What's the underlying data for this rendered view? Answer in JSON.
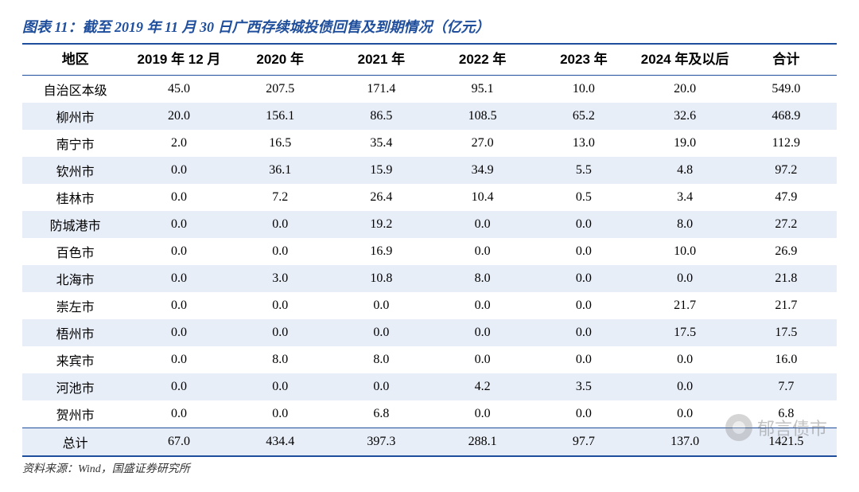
{
  "title": "图表 11：截至 2019 年 11 月 30 日广西存续城投债回售及到期情况（亿元）",
  "source": "资料来源：Wind，国盛证券研究所",
  "watermark": "郁言债市",
  "table": {
    "type": "table",
    "header_fontsize": 17,
    "cell_fontsize": 16,
    "border_color": "#1f4e9c",
    "row_stripe_color": "#e8eef8",
    "background_color": "#ffffff",
    "columns": [
      "地区",
      "2019 年 12 月",
      "2020 年",
      "2021 年",
      "2022 年",
      "2023 年",
      "2024 年及以后",
      "合计"
    ],
    "rows": [
      [
        "自治区本级",
        "45.0",
        "207.5",
        "171.4",
        "95.1",
        "10.0",
        "20.0",
        "549.0"
      ],
      [
        "柳州市",
        "20.0",
        "156.1",
        "86.5",
        "108.5",
        "65.2",
        "32.6",
        "468.9"
      ],
      [
        "南宁市",
        "2.0",
        "16.5",
        "35.4",
        "27.0",
        "13.0",
        "19.0",
        "112.9"
      ],
      [
        "钦州市",
        "0.0",
        "36.1",
        "15.9",
        "34.9",
        "5.5",
        "4.8",
        "97.2"
      ],
      [
        "桂林市",
        "0.0",
        "7.2",
        "26.4",
        "10.4",
        "0.5",
        "3.4",
        "47.9"
      ],
      [
        "防城港市",
        "0.0",
        "0.0",
        "19.2",
        "0.0",
        "0.0",
        "8.0",
        "27.2"
      ],
      [
        "百色市",
        "0.0",
        "0.0",
        "16.9",
        "0.0",
        "0.0",
        "10.0",
        "26.9"
      ],
      [
        "北海市",
        "0.0",
        "3.0",
        "10.8",
        "8.0",
        "0.0",
        "0.0",
        "21.8"
      ],
      [
        "崇左市",
        "0.0",
        "0.0",
        "0.0",
        "0.0",
        "0.0",
        "21.7",
        "21.7"
      ],
      [
        "梧州市",
        "0.0",
        "0.0",
        "0.0",
        "0.0",
        "0.0",
        "17.5",
        "17.5"
      ],
      [
        "来宾市",
        "0.0",
        "8.0",
        "8.0",
        "0.0",
        "0.0",
        "0.0",
        "16.0"
      ],
      [
        "河池市",
        "0.0",
        "0.0",
        "0.0",
        "4.2",
        "3.5",
        "0.0",
        "7.7"
      ],
      [
        "贺州市",
        "0.0",
        "0.0",
        "6.8",
        "0.0",
        "0.0",
        "0.0",
        "6.8"
      ]
    ],
    "total_row": [
      "总计",
      "67.0",
      "434.4",
      "397.3",
      "288.1",
      "97.7",
      "137.0",
      "1421.5"
    ]
  }
}
